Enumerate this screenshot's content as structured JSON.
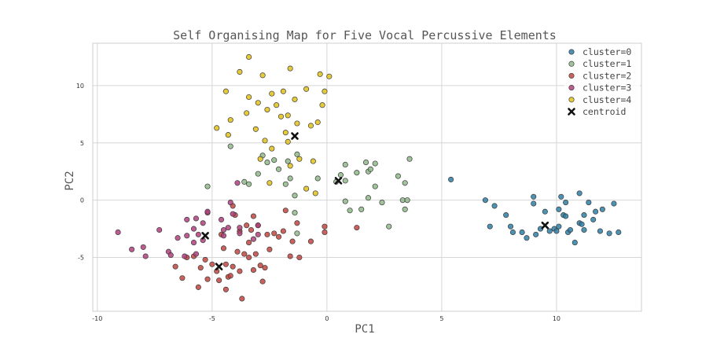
{
  "chart_data": {
    "type": "scatter",
    "title": "Self Organising Map for Five Vocal Percussive Elements",
    "xlabel": "PC1",
    "ylabel": "PC2",
    "xlim": [
      -10.2,
      13.7
    ],
    "ylim": [
      -9.7,
      13.7
    ],
    "xticks": [
      -10,
      -5,
      0,
      5,
      10
    ],
    "yticks": [
      -5,
      0,
      5,
      10
    ],
    "grid": true,
    "legend_position": "top-right",
    "series": [
      {
        "name": "cluster=0",
        "color": "#2e7ea6",
        "points": [
          [
            5.4,
            1.8
          ],
          [
            6.9,
            0.0
          ],
          [
            7.1,
            -2.3
          ],
          [
            7.3,
            -0.5
          ],
          [
            7.8,
            -1.3
          ],
          [
            8.0,
            -2.3
          ],
          [
            8.1,
            -2.8
          ],
          [
            8.5,
            -2.8
          ],
          [
            8.7,
            -3.3
          ],
          [
            9.0,
            0.3
          ],
          [
            9.0,
            -0.3
          ],
          [
            9.1,
            -3.0
          ],
          [
            9.3,
            -2.5
          ],
          [
            9.5,
            -1.0
          ],
          [
            9.7,
            -2.7
          ],
          [
            9.9,
            -2.5
          ],
          [
            10.0,
            -2.7
          ],
          [
            10.1,
            -2.3
          ],
          [
            10.1,
            -0.8
          ],
          [
            10.2,
            0.3
          ],
          [
            10.3,
            -1.3
          ],
          [
            10.4,
            -1.4
          ],
          [
            10.4,
            -0.2
          ],
          [
            10.5,
            -2.8
          ],
          [
            10.6,
            -2.6
          ],
          [
            10.8,
            -3.7
          ],
          [
            11.0,
            0.6
          ],
          [
            11.0,
            -2.0
          ],
          [
            11.1,
            -2.1
          ],
          [
            11.2,
            -2.6
          ],
          [
            11.2,
            -1.3
          ],
          [
            11.4,
            -0.2
          ],
          [
            11.6,
            -1.7
          ],
          [
            11.7,
            -1.0
          ],
          [
            11.9,
            -2.7
          ],
          [
            12.0,
            -0.8
          ],
          [
            12.3,
            -2.9
          ],
          [
            12.5,
            -0.3
          ],
          [
            12.7,
            -2.8
          ]
        ]
      },
      {
        "name": "cluster=1",
        "color": "#8fb98a",
        "points": [
          [
            -5.2,
            1.2
          ],
          [
            -4.2,
            4.7
          ],
          [
            -3.6,
            1.6
          ],
          [
            -3.4,
            1.4
          ],
          [
            -3.0,
            2.3
          ],
          [
            -2.8,
            3.9
          ],
          [
            -2.6,
            3.3
          ],
          [
            -2.3,
            3.5
          ],
          [
            -2.1,
            2.7
          ],
          [
            -1.8,
            1.4
          ],
          [
            -1.7,
            3.4
          ],
          [
            -1.6,
            1.9
          ],
          [
            -1.4,
            -1.1
          ],
          [
            -1.4,
            0.4
          ],
          [
            -1.3,
            -2.9
          ],
          [
            -1.3,
            4.0
          ],
          [
            -0.4,
            1.9
          ],
          [
            0.4,
            1.6
          ],
          [
            0.6,
            2.2
          ],
          [
            0.8,
            1.7
          ],
          [
            0.8,
            3.1
          ],
          [
            0.8,
            -0.1
          ],
          [
            1.0,
            -0.9
          ],
          [
            1.3,
            2.4
          ],
          [
            1.5,
            -0.8
          ],
          [
            1.7,
            3.3
          ],
          [
            1.8,
            0.2
          ],
          [
            1.8,
            2.5
          ],
          [
            1.9,
            2.7
          ],
          [
            2.1,
            1.2
          ],
          [
            2.1,
            3.2
          ],
          [
            2.4,
            -0.2
          ],
          [
            2.7,
            -2.3
          ],
          [
            3.1,
            2.1
          ],
          [
            3.3,
            0.0
          ],
          [
            3.4,
            -0.8
          ],
          [
            3.4,
            1.5
          ],
          [
            3.5,
            0.0
          ],
          [
            3.6,
            3.6
          ]
        ]
      },
      {
        "name": "cluster=2",
        "color": "#c2453f",
        "points": [
          [
            -6.6,
            -5.8
          ],
          [
            -6.3,
            -6.8
          ],
          [
            -6.1,
            -5.0
          ],
          [
            -5.8,
            -4.9
          ],
          [
            -5.6,
            -7.6
          ],
          [
            -5.5,
            -5.9
          ],
          [
            -5.3,
            -5.2
          ],
          [
            -5.2,
            -6.9
          ],
          [
            -5.0,
            -5.6
          ],
          [
            -4.8,
            -6.2
          ],
          [
            -4.7,
            -7.0
          ],
          [
            -4.6,
            -3.0
          ],
          [
            -4.5,
            -4.2
          ],
          [
            -4.4,
            -7.8
          ],
          [
            -4.4,
            -5.6
          ],
          [
            -4.3,
            -6.7
          ],
          [
            -4.2,
            -6.6
          ],
          [
            -4.1,
            -5.8
          ],
          [
            -4.1,
            -0.5
          ],
          [
            -4.0,
            -1.3
          ],
          [
            -3.9,
            -4.5
          ],
          [
            -3.8,
            -2.7
          ],
          [
            -3.8,
            -6.2
          ],
          [
            -3.7,
            -8.6
          ],
          [
            -3.6,
            -4.7
          ],
          [
            -3.5,
            -2.2
          ],
          [
            -3.4,
            -3.7
          ],
          [
            -3.4,
            -5.0
          ],
          [
            -3.3,
            -2.6
          ],
          [
            -3.2,
            -6.1
          ],
          [
            -3.2,
            -1.4
          ],
          [
            -3.1,
            -4.7
          ],
          [
            -3.0,
            -2.2
          ],
          [
            -2.9,
            -5.7
          ],
          [
            -2.8,
            -7.1
          ],
          [
            -2.7,
            -5.9
          ],
          [
            -2.6,
            -3.0
          ],
          [
            -2.5,
            -4.3
          ],
          [
            -2.3,
            -2.9
          ],
          [
            -2.1,
            -3.2
          ],
          [
            -1.9,
            -2.7
          ],
          [
            -1.8,
            -0.9
          ],
          [
            -1.6,
            -4.9
          ],
          [
            -1.5,
            -3.6
          ],
          [
            -1.3,
            -2.0
          ],
          [
            -1.2,
            -5.0
          ],
          [
            -0.7,
            -3.6
          ],
          [
            -0.1,
            -2.8
          ],
          [
            -0.1,
            -2.3
          ],
          [
            1.3,
            -2.4
          ]
        ]
      },
      {
        "name": "cluster=3",
        "color": "#b0407d",
        "points": [
          [
            -9.1,
            -2.8
          ],
          [
            -8.5,
            -4.3
          ],
          [
            -8.0,
            -4.1
          ],
          [
            -7.9,
            -4.9
          ],
          [
            -7.3,
            -2.6
          ],
          [
            -6.9,
            -4.5
          ],
          [
            -6.8,
            -4.8
          ],
          [
            -6.5,
            -3.3
          ],
          [
            -6.2,
            -4.9
          ],
          [
            -6.1,
            -1.7
          ],
          [
            -6.1,
            -3.1
          ],
          [
            -5.8,
            -2.5
          ],
          [
            -5.8,
            -3.7
          ],
          [
            -5.7,
            -1.6
          ],
          [
            -5.7,
            -4.7
          ],
          [
            -5.6,
            -3.0
          ],
          [
            -5.4,
            -3.5
          ],
          [
            -5.4,
            -2.0
          ],
          [
            -5.2,
            -1.1
          ],
          [
            -5.2,
            -1.0
          ],
          [
            -4.6,
            -1.7
          ],
          [
            -4.5,
            -2.6
          ],
          [
            -4.5,
            -3.1
          ],
          [
            -4.3,
            -2.4
          ],
          [
            -4.2,
            -0.2
          ],
          [
            -4.1,
            -1.2
          ],
          [
            -3.9,
            1.5
          ],
          [
            -3.8,
            -2.9
          ],
          [
            -3.8,
            -2.4
          ],
          [
            -3.2,
            -3.4
          ],
          [
            -3.0,
            -3.0
          ],
          [
            -3.0,
            -2.2
          ]
        ]
      },
      {
        "name": "cluster=4",
        "color": "#e0c21a",
        "points": [
          [
            -4.8,
            6.3
          ],
          [
            -4.4,
            9.5
          ],
          [
            -4.3,
            5.7
          ],
          [
            -4.2,
            7.0
          ],
          [
            -3.8,
            11.2
          ],
          [
            -3.5,
            7.6
          ],
          [
            -3.4,
            9.0
          ],
          [
            -3.4,
            12.5
          ],
          [
            -3.1,
            6.2
          ],
          [
            -3.0,
            8.5
          ],
          [
            -2.9,
            3.6
          ],
          [
            -2.8,
            10.9
          ],
          [
            -2.7,
            5.2
          ],
          [
            -2.6,
            7.9
          ],
          [
            -2.5,
            1.5
          ],
          [
            -2.4,
            4.5
          ],
          [
            -2.4,
            9.3
          ],
          [
            -2.2,
            8.3
          ],
          [
            -2.0,
            7.3
          ],
          [
            -1.9,
            9.5
          ],
          [
            -1.8,
            5.9
          ],
          [
            -1.7,
            7.4
          ],
          [
            -1.7,
            5.1
          ],
          [
            -1.6,
            3.0
          ],
          [
            -1.6,
            11.5
          ],
          [
            -1.4,
            8.8
          ],
          [
            -1.3,
            6.7
          ],
          [
            -1.2,
            3.6
          ],
          [
            -0.9,
            9.7
          ],
          [
            -0.9,
            1.0
          ],
          [
            -0.7,
            6.5
          ],
          [
            -0.6,
            3.4
          ],
          [
            -0.5,
            0.6
          ],
          [
            -0.4,
            6.8
          ],
          [
            -0.3,
            11.0
          ],
          [
            -0.2,
            8.3
          ],
          [
            -0.1,
            9.5
          ],
          [
            0.1,
            10.8
          ]
        ]
      }
    ],
    "centroids": {
      "name": "centroid",
      "color": "#111111",
      "points": [
        [
          9.5,
          -2.2
        ],
        [
          0.5,
          1.7
        ],
        [
          -4.7,
          -5.8
        ],
        [
          -5.3,
          -3.1
        ],
        [
          -1.4,
          5.6
        ]
      ]
    }
  }
}
